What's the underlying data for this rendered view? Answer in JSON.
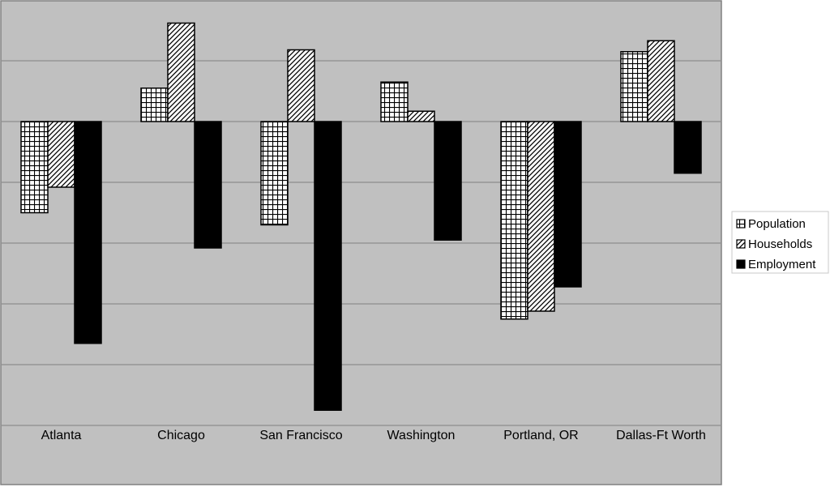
{
  "chart_data": {
    "type": "bar",
    "title": "",
    "xlabel": "",
    "ylabel": "",
    "ylim": [
      -5,
      2
    ],
    "grid": true,
    "legend_position": "right",
    "categories": [
      "Atlanta",
      "Chicago",
      "San Francisco",
      "Washington",
      "Portland, OR",
      "Dallas-Ft Worth"
    ],
    "series": [
      {
        "name": "Population",
        "pattern": "grid",
        "values": [
          -1.5,
          0.55,
          -1.7,
          0.65,
          -3.25,
          1.15
        ]
      },
      {
        "name": "Households",
        "pattern": "diagonal",
        "values": [
          -1.08,
          1.62,
          1.18,
          0.17,
          -3.12,
          1.33
        ]
      },
      {
        "name": "Employment",
        "pattern": "solid",
        "values": [
          -3.65,
          -2.08,
          -4.75,
          -1.95,
          -2.72,
          -0.85
        ]
      }
    ]
  },
  "colors": {
    "plot_background": "#c0c0c0",
    "plot_border": "#808080",
    "gridline": "#808080",
    "bar_outline": "#000000",
    "solid_fill": "#000000",
    "pattern_background": "#ffffff",
    "legend_background": "#ffffff"
  }
}
